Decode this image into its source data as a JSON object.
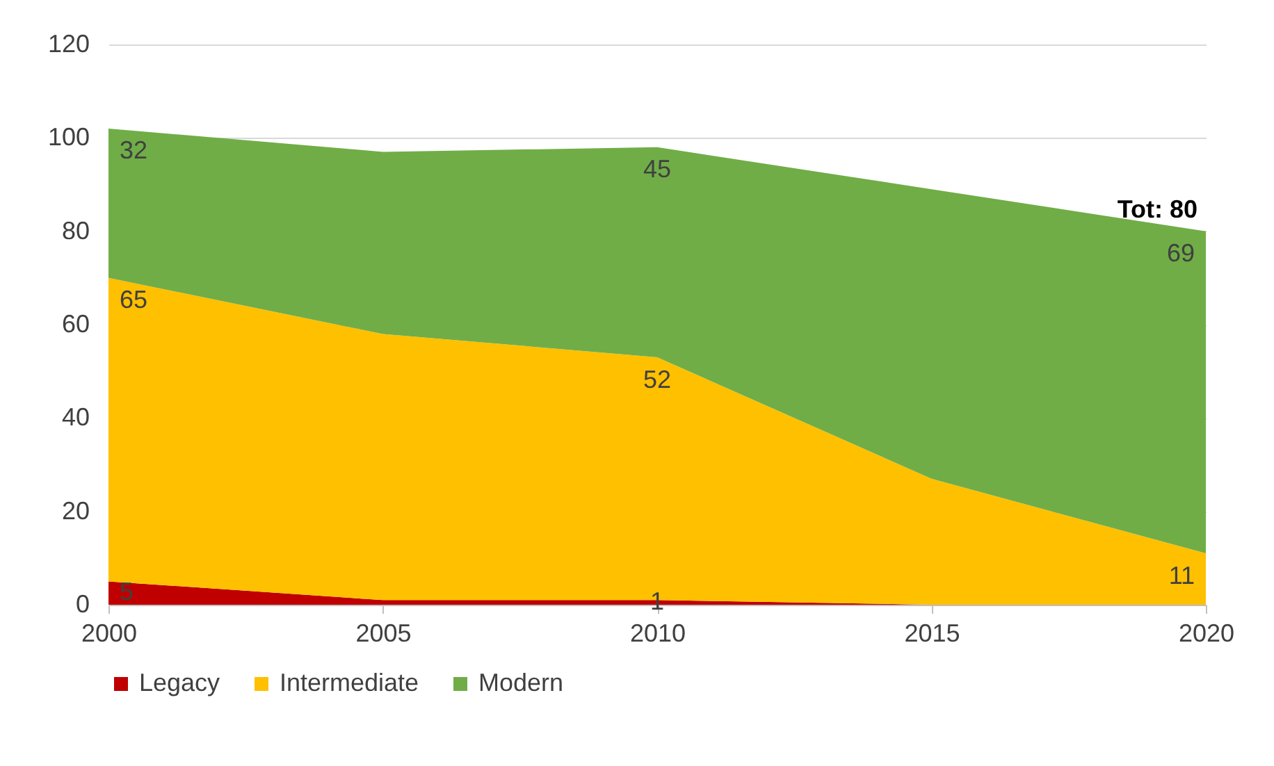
{
  "chart_data": {
    "type": "area",
    "stacked": true,
    "x": [
      2000,
      2005,
      2010,
      2015,
      2020
    ],
    "series": [
      {
        "name": "Legacy",
        "color": "#c00000",
        "values": [
          5,
          1,
          1,
          0,
          0
        ],
        "value_labels": [
          "5",
          null,
          "1",
          null,
          null
        ]
      },
      {
        "name": "Intermediate",
        "color": "#ffc000",
        "values": [
          65,
          57,
          52,
          27,
          11
        ],
        "value_labels": [
          "65",
          null,
          "52",
          null,
          "11"
        ]
      },
      {
        "name": "Modern",
        "color": "#70ad47",
        "values": [
          32,
          39,
          45,
          62,
          69
        ],
        "value_labels": [
          "32",
          null,
          "45",
          null,
          "69"
        ]
      }
    ],
    "xlim": [
      2000,
      2020
    ],
    "xticks": [
      2000,
      2005,
      2010,
      2015,
      2020
    ],
    "ylim": [
      0,
      120
    ],
    "yticks": [
      0,
      20,
      40,
      60,
      80,
      100,
      120
    ],
    "grid": "y",
    "legend": "bottom",
    "annotations": [
      {
        "text": "Tot: 80",
        "x": 2020,
        "y": 80
      }
    ]
  }
}
